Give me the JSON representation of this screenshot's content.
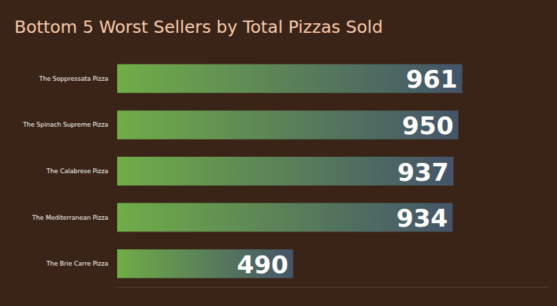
{
  "chart_data": {
    "type": "bar",
    "title": "Bottom 5 Worst Sellers by Total Pizzas Sold",
    "categories": [
      "The Soppressata Pizza",
      "The Spinach Supreme Pizza",
      "The Calabrese Pizza",
      "The Mediterranean Pizza",
      "The Brie Carre Pizza"
    ],
    "values": [
      961,
      950,
      937,
      934,
      490
    ],
    "color": "#70ad47",
    "orientation": "horizontal",
    "data_labels": true,
    "tick_labels": "y",
    "grid": false,
    "xlim": [
      0,
      1200
    ]
  }
}
